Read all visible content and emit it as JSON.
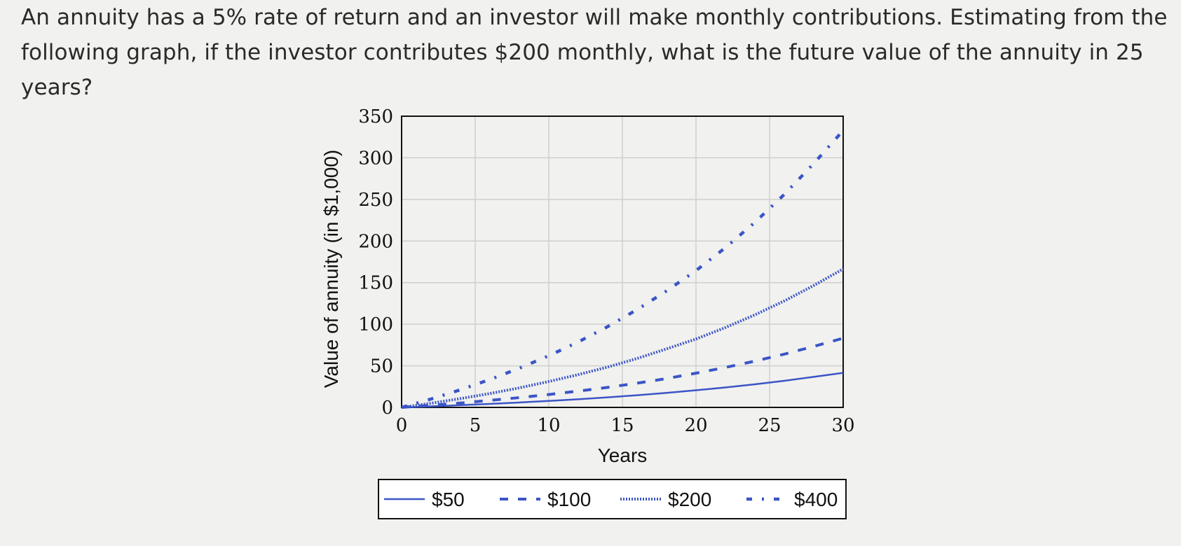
{
  "question": "An annuity has a 5% rate of return and an investor will make monthly contributions. Estimating from the following graph, if the investor contributes $200 monthly, what is the future value of the annuity in 25 years?",
  "chart_data": {
    "type": "line",
    "title": "",
    "xlabel": "Years",
    "ylabel": "Value of annuity (in $1,000)",
    "xlim": [
      0,
      30
    ],
    "ylim": [
      0,
      350
    ],
    "xticks": [
      0,
      5,
      10,
      15,
      20,
      25,
      30
    ],
    "yticks": [
      0,
      50,
      100,
      150,
      200,
      250,
      300,
      350
    ],
    "grid": true,
    "legend_position": "bottom",
    "x": [
      0,
      2,
      4,
      6,
      8,
      10,
      12,
      14,
      16,
      18,
      20,
      22,
      24,
      26,
      28,
      30
    ],
    "series": [
      {
        "name": "$50",
        "style": "solid",
        "color": "#3b55c7",
        "values": [
          0,
          1.3,
          2.7,
          4.2,
          5.9,
          7.8,
          9.8,
          12.1,
          14.6,
          17.4,
          20.6,
          24.0,
          27.8,
          32.0,
          36.7,
          41.6
        ]
      },
      {
        "name": "$100",
        "style": "dashed",
        "color": "#3b55c7",
        "values": [
          0,
          2.5,
          5.3,
          8.4,
          11.8,
          15.5,
          19.6,
          24.1,
          29.1,
          34.7,
          41.1,
          48.0,
          55.6,
          64.0,
          73.3,
          83.2
        ]
      },
      {
        "name": "$200",
        "style": "dotted",
        "color": "#3b55c7",
        "values": [
          0,
          5.0,
          10.6,
          16.7,
          23.5,
          31.1,
          39.4,
          48.5,
          58.8,
          70.3,
          82.2,
          96.0,
          111.2,
          128.0,
          146.5,
          166.4
        ]
      },
      {
        "name": "$400",
        "style": "dash-dot",
        "color": "#3b55c7",
        "values": [
          0,
          10.1,
          21.2,
          33.5,
          47.1,
          62.1,
          78.7,
          97.1,
          117.5,
          140.0,
          164.4,
          192.0,
          222.4,
          256.0,
          293.1,
          332.8
        ]
      }
    ]
  }
}
